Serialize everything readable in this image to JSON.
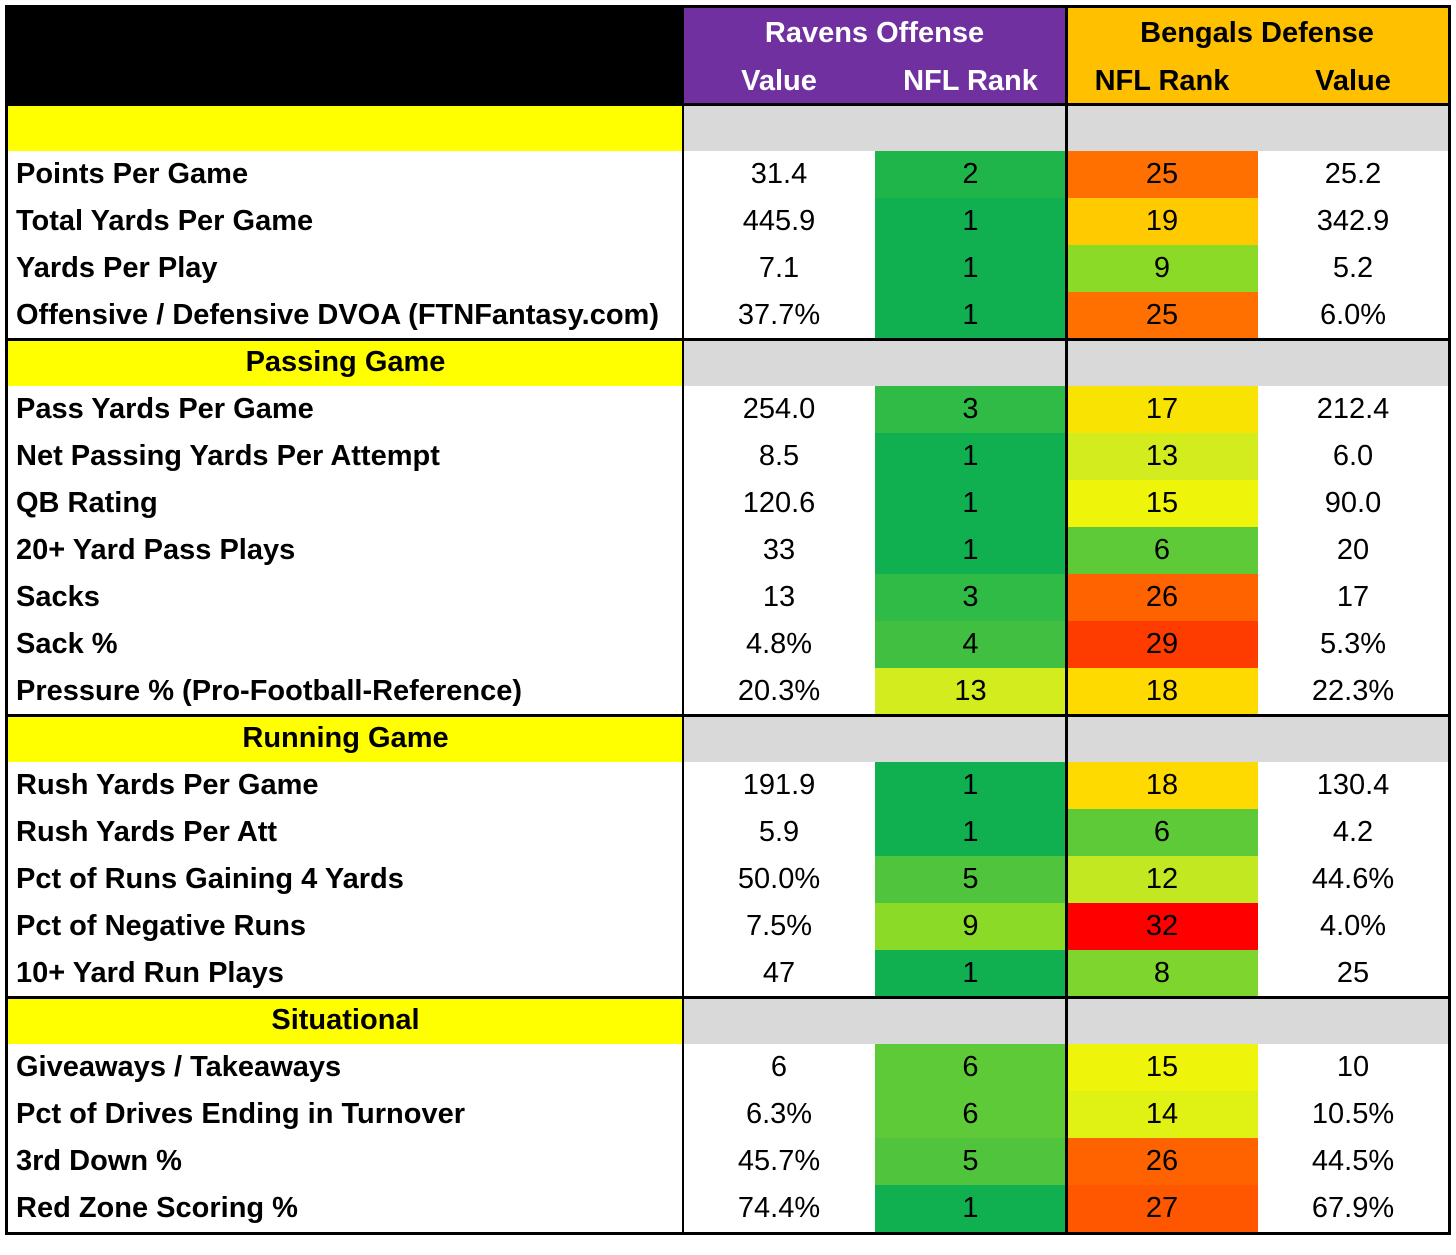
{
  "chart_data": {
    "type": "table",
    "title": "",
    "header": {
      "ravens": {
        "title": "Ravens Offense",
        "col1": "Value",
        "col2": "NFL Rank",
        "color": "#7030a0"
      },
      "bengals": {
        "title": "Bengals Defense",
        "col1": "NFL Rank",
        "col2": "Value",
        "color": "#ffc000"
      }
    },
    "colors": {
      "section_label": "#ffff00",
      "section_bar": "#d9d9d9",
      "header_corner": "#000000"
    },
    "sections": [
      {
        "title": "",
        "rows": [
          {
            "label": "Points Per Game",
            "rav_value": "31.4",
            "rav_rank": 2,
            "ben_rank": 25,
            "ben_value": "25.2"
          },
          {
            "label": "Total Yards Per Game",
            "rav_value": "445.9",
            "rav_rank": 1,
            "ben_rank": 19,
            "ben_value": "342.9"
          },
          {
            "label": "Yards Per Play",
            "rav_value": "7.1",
            "rav_rank": 1,
            "ben_rank": 9,
            "ben_value": "5.2"
          },
          {
            "label": "Offensive / Defensive DVOA (FTNFantasy.com)",
            "rav_value": "37.7%",
            "rav_rank": 1,
            "ben_rank": 25,
            "ben_value": "6.0%"
          }
        ]
      },
      {
        "title": "Passing Game",
        "rows": [
          {
            "label": "Pass Yards Per Game",
            "rav_value": "254.0",
            "rav_rank": 3,
            "ben_rank": 17,
            "ben_value": "212.4"
          },
          {
            "label": "Net Passing Yards Per Attempt",
            "rav_value": "8.5",
            "rav_rank": 1,
            "ben_rank": 13,
            "ben_value": "6.0"
          },
          {
            "label": "QB Rating",
            "rav_value": "120.6",
            "rav_rank": 1,
            "ben_rank": 15,
            "ben_value": "90.0"
          },
          {
            "label": "20+ Yard Pass Plays",
            "rav_value": "33",
            "rav_rank": 1,
            "ben_rank": 6,
            "ben_value": "20"
          },
          {
            "label": "Sacks",
            "rav_value": "13",
            "rav_rank": 3,
            "ben_rank": 26,
            "ben_value": "17"
          },
          {
            "label": "Sack %",
            "rav_value": "4.8%",
            "rav_rank": 4,
            "ben_rank": 29,
            "ben_value": "5.3%"
          },
          {
            "label": "Pressure % (Pro-Football-Reference)",
            "rav_value": "20.3%",
            "rav_rank": 13,
            "ben_rank": 18,
            "ben_value": "22.3%"
          }
        ]
      },
      {
        "title": "Running Game",
        "rows": [
          {
            "label": "Rush Yards Per Game",
            "rav_value": "191.9",
            "rav_rank": 1,
            "ben_rank": 18,
            "ben_value": "130.4"
          },
          {
            "label": "Rush Yards Per Att",
            "rav_value": "5.9",
            "rav_rank": 1,
            "ben_rank": 6,
            "ben_value": "4.2"
          },
          {
            "label": "Pct of Runs Gaining 4 Yards",
            "rav_value": "50.0%",
            "rav_rank": 5,
            "ben_rank": 12,
            "ben_value": "44.6%"
          },
          {
            "label": "Pct of Negative Runs",
            "rav_value": "7.5%",
            "rav_rank": 9,
            "ben_rank": 32,
            "ben_value": "4.0%"
          },
          {
            "label": "10+ Yard Run Plays",
            "rav_value": "47",
            "rav_rank": 1,
            "ben_rank": 8,
            "ben_value": "25"
          }
        ]
      },
      {
        "title": "Situational",
        "rows": [
          {
            "label": "Giveaways / Takeaways",
            "rav_value": "6",
            "rav_rank": 6,
            "ben_rank": 15,
            "ben_value": "10"
          },
          {
            "label": "Pct of Drives Ending in Turnover",
            "rav_value": "6.3%",
            "rav_rank": 6,
            "ben_rank": 14,
            "ben_value": "10.5%"
          },
          {
            "label": "3rd Down %",
            "rav_value": "45.7%",
            "rav_rank": 5,
            "ben_rank": 26,
            "ben_value": "44.5%"
          },
          {
            "label": "Red Zone Scoring %",
            "rav_value": "74.4%",
            "rav_rank": 1,
            "ben_rank": 27,
            "ben_value": "67.9%"
          }
        ]
      }
    ]
  }
}
